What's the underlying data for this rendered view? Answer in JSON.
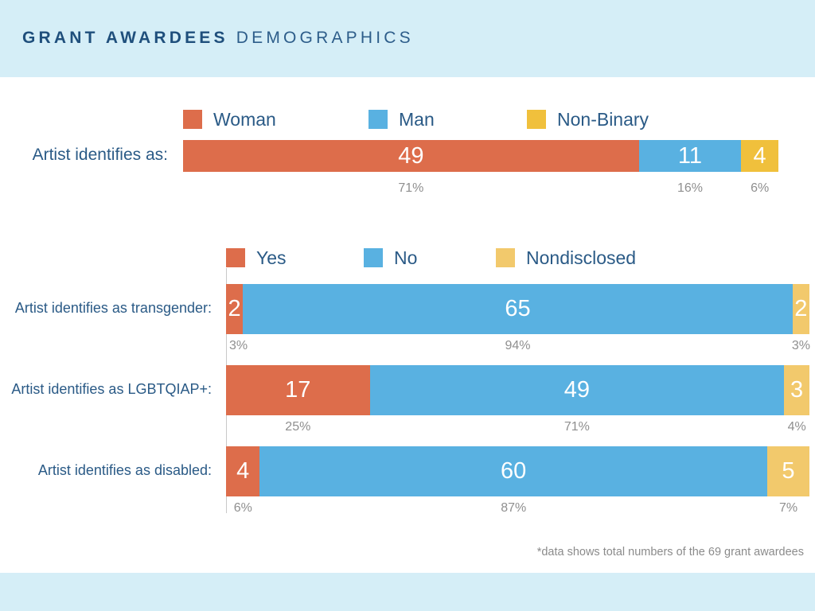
{
  "title": {
    "bold": "GRANT AWARDEES",
    "light": "DEMOGRAPHICS"
  },
  "colors": {
    "orange": "#dd6d4b",
    "blue": "#59b1e1",
    "yellow": "#f0c03c",
    "light_yellow": "#f2c96c"
  },
  "footnote": "*data shows total numbers of the 69 grant awardees",
  "chart_data": [
    {
      "type": "bar",
      "orientation": "horizontal",
      "stacked": true,
      "legend_position": "top",
      "legend": [
        "Woman",
        "Man",
        "Non-Binary"
      ],
      "categories": [
        "Artist identifies as:"
      ],
      "series": [
        {
          "name": "Woman",
          "values": [
            49
          ],
          "percent_labels": [
            "71%"
          ],
          "color": "#dd6d4b"
        },
        {
          "name": "Man",
          "values": [
            11
          ],
          "percent_labels": [
            "16%"
          ],
          "color": "#59b1e1"
        },
        {
          "name": "Non-Binary",
          "values": [
            4
          ],
          "percent_labels": [
            "6%"
          ],
          "color": "#f0c03c"
        }
      ]
    },
    {
      "type": "bar",
      "orientation": "horizontal",
      "stacked": true,
      "legend_position": "top",
      "legend": [
        "Yes",
        "No",
        "Nondisclosed"
      ],
      "categories": [
        "Artist identifies as transgender:",
        "Artist identifies as LGBTQIAP+:",
        "Artist identifies as disabled:"
      ],
      "series": [
        {
          "name": "Yes",
          "values": [
            2,
            17,
            4
          ],
          "percent_labels": [
            "3%",
            "25%",
            "6%"
          ],
          "color": "#dd6d4b"
        },
        {
          "name": "No",
          "values": [
            65,
            49,
            60
          ],
          "percent_labels": [
            "94%",
            "71%",
            "87%"
          ],
          "color": "#59b1e1"
        },
        {
          "name": "Nondisclosed",
          "values": [
            2,
            3,
            5
          ],
          "percent_labels": [
            "3%",
            "4%",
            "7%"
          ],
          "color": "#f2c96c"
        }
      ]
    }
  ]
}
